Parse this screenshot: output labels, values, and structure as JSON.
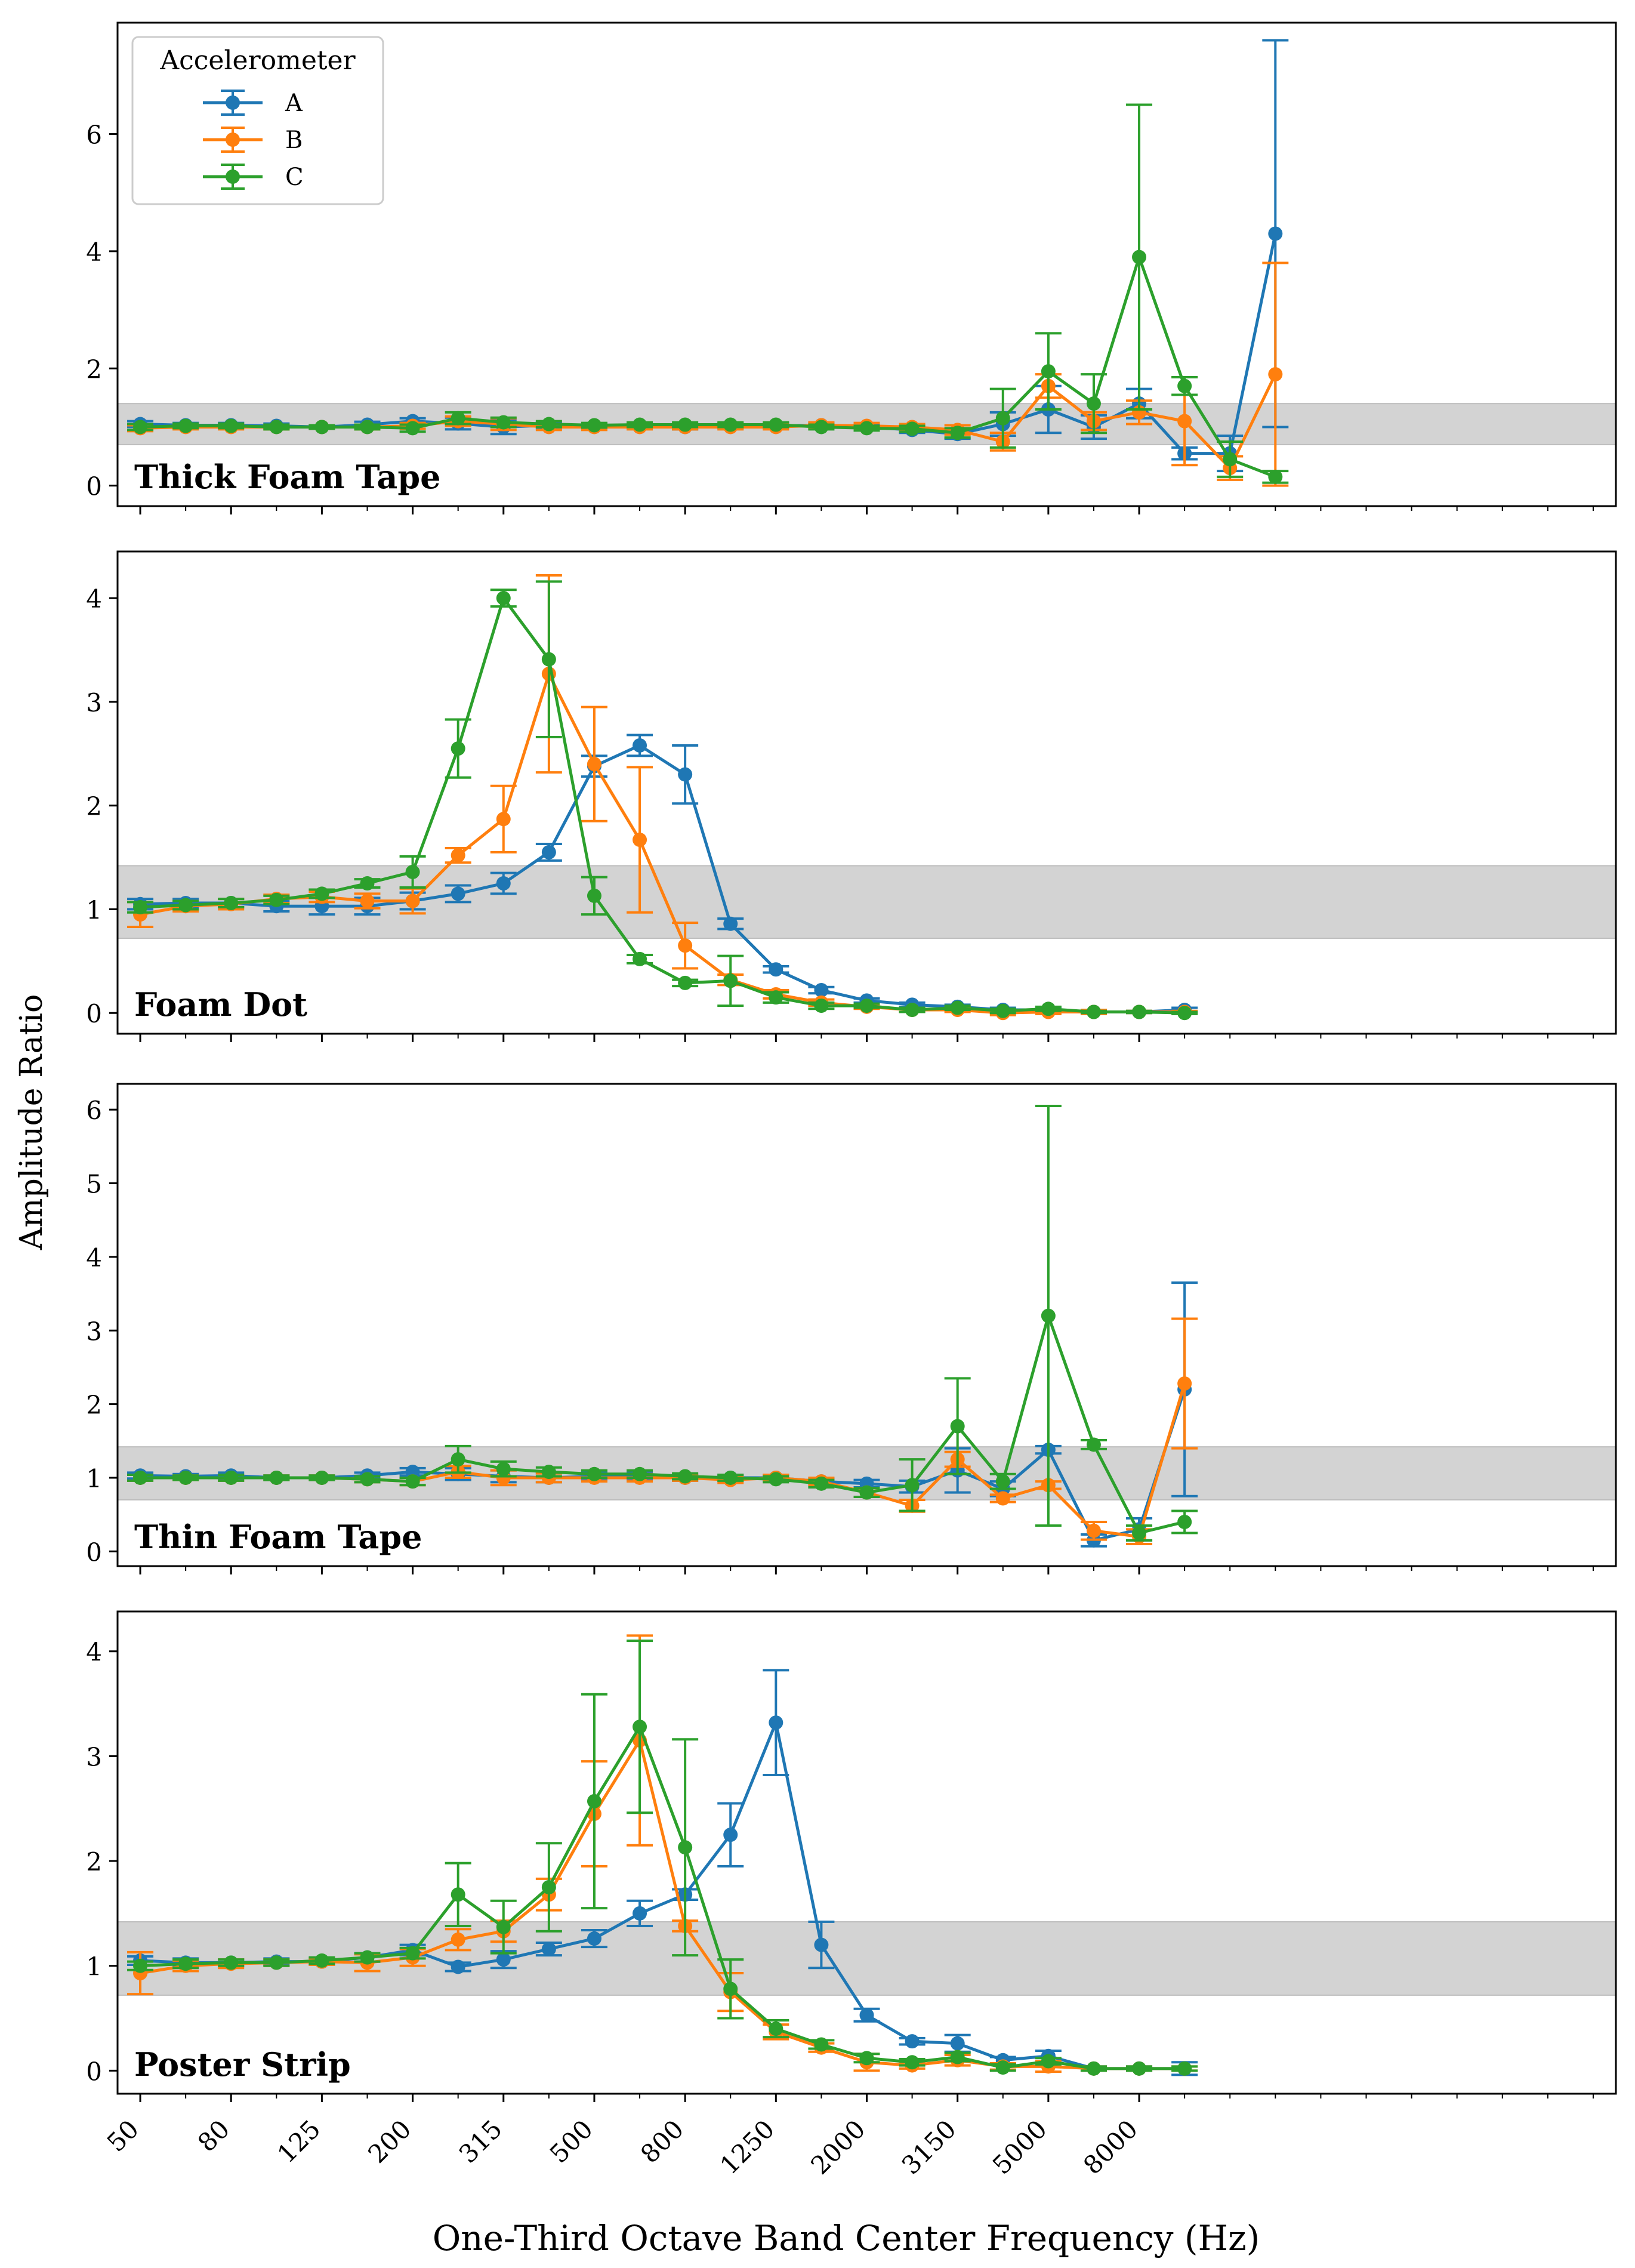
{
  "figure": {
    "ylabel": "Amplitude Ratio",
    "xlabel": "One-Third Octave Band Center Frequency (Hz)",
    "legend_title": "Accelerometer",
    "colors": {
      "A": "#1f77b4",
      "B": "#ff7f0e",
      "C": "#2ca02c",
      "band": "#d3d3d3"
    }
  },
  "chart_data": [
    {
      "type": "line",
      "title": "Thick Foam Tape",
      "ylim": [
        -0.35,
        7.9
      ],
      "yticks": [
        0,
        2,
        4,
        6
      ],
      "band": [
        0.7,
        1.4
      ],
      "series": [
        {
          "name": "A",
          "values": [
            1.05,
            1.03,
            1.03,
            1.02,
            1.0,
            1.04,
            1.1,
            1.06,
            1.0,
            1.03,
            1.02,
            1.02,
            1.0,
            1.02,
            1.02,
            1.03,
            1.0,
            0.95,
            0.88,
            1.05,
            1.3,
            1.0,
            1.4,
            0.55,
            0.55,
            4.3
          ],
          "err": [
            0.05,
            0.04,
            0.04,
            0.04,
            0.03,
            0.05,
            0.05,
            0.1,
            0.12,
            0.05,
            0.04,
            0.04,
            0.04,
            0.04,
            0.04,
            0.04,
            0.04,
            0.05,
            0.08,
            0.2,
            0.4,
            0.2,
            0.25,
            0.1,
            0.3,
            3.3
          ]
        },
        {
          "name": "B",
          "values": [
            0.98,
            1.0,
            1.0,
            1.0,
            1.0,
            1.0,
            1.02,
            1.1,
            1.05,
            1.0,
            1.0,
            1.0,
            1.0,
            1.0,
            1.0,
            1.03,
            1.02,
            1.0,
            0.95,
            0.75,
            1.7,
            1.1,
            1.25,
            1.1,
            0.3,
            1.9
          ],
          "err": [
            0.05,
            0.04,
            0.04,
            0.04,
            0.03,
            0.04,
            0.05,
            0.08,
            0.1,
            0.05,
            0.05,
            0.04,
            0.04,
            0.04,
            0.04,
            0.05,
            0.05,
            0.05,
            0.08,
            0.15,
            0.2,
            0.15,
            0.2,
            0.75,
            0.2,
            1.9
          ]
        },
        {
          "name": "C",
          "values": [
            1.0,
            1.02,
            1.02,
            1.0,
            1.0,
            1.0,
            0.98,
            1.15,
            1.08,
            1.05,
            1.03,
            1.04,
            1.04,
            1.04,
            1.04,
            1.0,
            0.98,
            0.97,
            0.9,
            1.15,
            1.95,
            1.4,
            3.9,
            1.7,
            0.45,
            0.15
          ],
          "err": [
            0.05,
            0.04,
            0.04,
            0.04,
            0.03,
            0.04,
            0.06,
            0.1,
            0.08,
            0.05,
            0.04,
            0.04,
            0.04,
            0.04,
            0.04,
            0.04,
            0.04,
            0.05,
            0.08,
            0.5,
            0.65,
            0.5,
            2.6,
            0.15,
            0.3,
            0.1
          ]
        }
      ]
    },
    {
      "type": "line",
      "title": "Foam Dot",
      "ylim": [
        -0.2,
        4.45
      ],
      "yticks": [
        0,
        1,
        2,
        3,
        4
      ],
      "band": [
        0.72,
        1.42
      ],
      "series": [
        {
          "name": "A",
          "values": [
            1.05,
            1.06,
            1.06,
            1.03,
            1.03,
            1.03,
            1.08,
            1.15,
            1.25,
            1.55,
            2.38,
            2.58,
            2.3,
            0.86,
            0.42,
            0.22,
            0.12,
            0.08,
            0.06,
            0.03,
            0.03,
            0.01,
            0.01,
            0.03
          ],
          "err": [
            0.05,
            0.04,
            0.04,
            0.05,
            0.08,
            0.08,
            0.08,
            0.08,
            0.1,
            0.08,
            0.1,
            0.1,
            0.28,
            0.05,
            0.03,
            0.03,
            0.02,
            0.02,
            0.02,
            0.02,
            0.02,
            0.01,
            0.01,
            0.02
          ]
        },
        {
          "name": "B",
          "values": [
            0.95,
            1.03,
            1.05,
            1.1,
            1.12,
            1.08,
            1.08,
            1.52,
            1.87,
            3.27,
            2.4,
            1.67,
            0.65,
            0.32,
            0.18,
            0.1,
            0.06,
            0.03,
            0.03,
            0.0,
            0.01,
            0.01,
            0.01,
            0.01
          ],
          "err": [
            0.12,
            0.05,
            0.05,
            0.04,
            0.05,
            0.07,
            0.12,
            0.07,
            0.32,
            0.95,
            0.55,
            0.7,
            0.22,
            0.05,
            0.04,
            0.03,
            0.02,
            0.02,
            0.02,
            0.02,
            0.02,
            0.02,
            0.01,
            0.01
          ]
        },
        {
          "name": "C",
          "values": [
            1.02,
            1.04,
            1.06,
            1.09,
            1.15,
            1.25,
            1.36,
            2.55,
            4.0,
            3.41,
            1.13,
            0.52,
            0.29,
            0.31,
            0.15,
            0.07,
            0.07,
            0.03,
            0.05,
            0.02,
            0.04,
            0.01,
            0.01,
            0.0
          ],
          "err": [
            0.05,
            0.04,
            0.04,
            0.04,
            0.04,
            0.04,
            0.15,
            0.28,
            0.08,
            0.75,
            0.18,
            0.04,
            0.03,
            0.24,
            0.05,
            0.03,
            0.02,
            0.02,
            0.02,
            0.02,
            0.02,
            0.01,
            0.01,
            0.01
          ]
        }
      ]
    },
    {
      "type": "line",
      "title": "Thin Foam Tape",
      "ylim": [
        -0.2,
        6.35
      ],
      "yticks": [
        0,
        1,
        2,
        3,
        4,
        5,
        6
      ],
      "band": [
        0.7,
        1.42
      ],
      "series": [
        {
          "name": "A",
          "values": [
            1.03,
            1.02,
            1.03,
            1.0,
            1.0,
            1.03,
            1.08,
            1.05,
            1.02,
            1.0,
            1.02,
            1.02,
            1.0,
            1.0,
            1.0,
            0.95,
            0.92,
            0.88,
            1.1,
            0.85,
            1.38,
            0.15,
            0.3,
            2.2
          ],
          "err": [
            0.04,
            0.03,
            0.04,
            0.03,
            0.03,
            0.04,
            0.05,
            0.08,
            0.08,
            0.06,
            0.05,
            0.05,
            0.04,
            0.04,
            0.04,
            0.04,
            0.05,
            0.08,
            0.3,
            0.1,
            0.05,
            0.08,
            0.15,
            1.45
          ]
        },
        {
          "name": "B",
          "values": [
            1.0,
            1.0,
            1.0,
            1.0,
            1.0,
            0.98,
            0.95,
            1.08,
            1.0,
            1.0,
            1.0,
            1.0,
            1.0,
            0.97,
            1.0,
            0.95,
            0.8,
            0.62,
            1.25,
            0.72,
            0.9,
            0.28,
            0.2,
            2.28
          ],
          "err": [
            0.04,
            0.03,
            0.04,
            0.03,
            0.03,
            0.04,
            0.05,
            0.08,
            0.1,
            0.06,
            0.05,
            0.05,
            0.04,
            0.04,
            0.04,
            0.05,
            0.06,
            0.08,
            0.1,
            0.05,
            0.05,
            0.12,
            0.1,
            0.88
          ]
        },
        {
          "name": "C",
          "values": [
            1.0,
            1.0,
            1.0,
            1.0,
            1.0,
            0.98,
            0.95,
            1.25,
            1.12,
            1.08,
            1.05,
            1.05,
            1.02,
            1.0,
            0.98,
            0.92,
            0.8,
            0.9,
            1.7,
            0.95,
            3.2,
            1.45,
            0.25,
            0.4
          ],
          "err": [
            0.04,
            0.03,
            0.04,
            0.03,
            0.03,
            0.04,
            0.05,
            0.18,
            0.1,
            0.06,
            0.05,
            0.05,
            0.04,
            0.04,
            0.04,
            0.05,
            0.06,
            0.35,
            0.65,
            0.1,
            2.85,
            0.06,
            0.1,
            0.15
          ]
        }
      ]
    },
    {
      "type": "line",
      "title": "Poster Strip",
      "ylim": [
        -0.22,
        4.38
      ],
      "yticks": [
        0,
        1,
        2,
        3,
        4
      ],
      "band": [
        0.72,
        1.42
      ],
      "series": [
        {
          "name": "A",
          "values": [
            1.05,
            1.03,
            1.03,
            1.04,
            1.04,
            1.08,
            1.15,
            0.99,
            1.06,
            1.16,
            1.26,
            1.5,
            1.68,
            2.25,
            3.32,
            1.2,
            0.53,
            0.28,
            0.26,
            0.1,
            0.14,
            0.02,
            0.02,
            0.02
          ],
          "err": [
            0.04,
            0.04,
            0.03,
            0.03,
            0.03,
            0.04,
            0.05,
            0.04,
            0.08,
            0.06,
            0.08,
            0.12,
            0.05,
            0.3,
            0.5,
            0.22,
            0.06,
            0.03,
            0.08,
            0.03,
            0.05,
            0.02,
            0.02,
            0.06
          ]
        },
        {
          "name": "B",
          "values": [
            0.93,
            1.0,
            1.02,
            1.03,
            1.04,
            1.03,
            1.08,
            1.25,
            1.33,
            1.68,
            2.45,
            3.15,
            1.38,
            0.75,
            0.37,
            0.22,
            0.08,
            0.05,
            0.1,
            0.04,
            0.04,
            0.02,
            0.02,
            0.02
          ],
          "err": [
            0.2,
            0.05,
            0.04,
            0.03,
            0.03,
            0.08,
            0.08,
            0.1,
            0.1,
            0.15,
            0.5,
            1.0,
            0.05,
            0.18,
            0.07,
            0.04,
            0.08,
            0.03,
            0.05,
            0.03,
            0.05,
            0.02,
            0.02,
            0.02
          ]
        },
        {
          "name": "C",
          "values": [
            1.0,
            1.02,
            1.03,
            1.03,
            1.05,
            1.08,
            1.12,
            1.68,
            1.37,
            1.75,
            2.57,
            3.28,
            2.13,
            0.78,
            0.4,
            0.25,
            0.12,
            0.08,
            0.13,
            0.03,
            0.09,
            0.02,
            0.02,
            0.02
          ],
          "err": [
            0.04,
            0.04,
            0.03,
            0.03,
            0.03,
            0.04,
            0.05,
            0.3,
            0.25,
            0.42,
            1.02,
            0.82,
            1.03,
            0.28,
            0.08,
            0.04,
            0.04,
            0.03,
            0.04,
            0.03,
            0.03,
            0.02,
            0.02,
            0.02
          ]
        }
      ]
    }
  ],
  "x_tick_labels": [
    "50",
    "80",
    "125",
    "200",
    "315",
    "500",
    "800",
    "1250",
    "2000",
    "3150",
    "5000",
    "8000"
  ]
}
